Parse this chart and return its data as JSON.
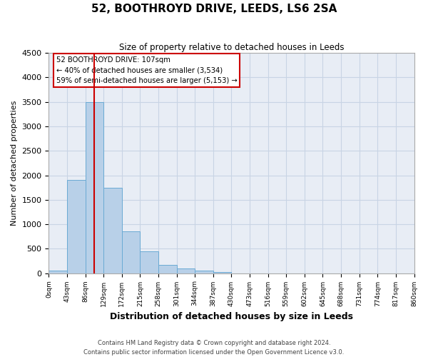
{
  "title": "52, BOOTHROYD DRIVE, LEEDS, LS6 2SA",
  "subtitle": "Size of property relative to detached houses in Leeds",
  "xlabel": "Distribution of detached houses by size in Leeds",
  "ylabel": "Number of detached properties",
  "bar_color": "#b8d0e8",
  "bar_edge_color": "#6aaad4",
  "background_color": "#ffffff",
  "plot_bg_color": "#e8edf5",
  "grid_color": "#c8d4e4",
  "property_line_x": 107,
  "annotation_title": "52 BOOTHROYD DRIVE: 107sqm",
  "annotation_line1": "← 40% of detached houses are smaller (3,534)",
  "annotation_line2": "59% of semi-detached houses are larger (5,153) →",
  "annotation_box_color": "#ffffff",
  "annotation_box_edge": "#cc0000",
  "property_line_color": "#cc0000",
  "footer_line1": "Contains HM Land Registry data © Crown copyright and database right 2024.",
  "footer_line2": "Contains public sector information licensed under the Open Government Licence v3.0.",
  "bin_labels": [
    "0sqm",
    "43sqm",
    "86sqm",
    "129sqm",
    "172sqm",
    "215sqm",
    "258sqm",
    "301sqm",
    "344sqm",
    "387sqm",
    "430sqm",
    "473sqm",
    "516sqm",
    "559sqm",
    "602sqm",
    "645sqm",
    "688sqm",
    "731sqm",
    "774sqm",
    "817sqm",
    "860sqm"
  ],
  "bin_edges": [
    0,
    43,
    86,
    129,
    172,
    215,
    258,
    301,
    344,
    387,
    430,
    473,
    516,
    559,
    602,
    645,
    688,
    731,
    774,
    817,
    860
  ],
  "bar_heights": [
    50,
    1900,
    3500,
    1750,
    850,
    450,
    170,
    100,
    55,
    30,
    0,
    0,
    0,
    0,
    0,
    0,
    0,
    0,
    0,
    0
  ],
  "ylim": [
    0,
    4500
  ],
  "yticks": [
    0,
    500,
    1000,
    1500,
    2000,
    2500,
    3000,
    3500,
    4000,
    4500
  ]
}
